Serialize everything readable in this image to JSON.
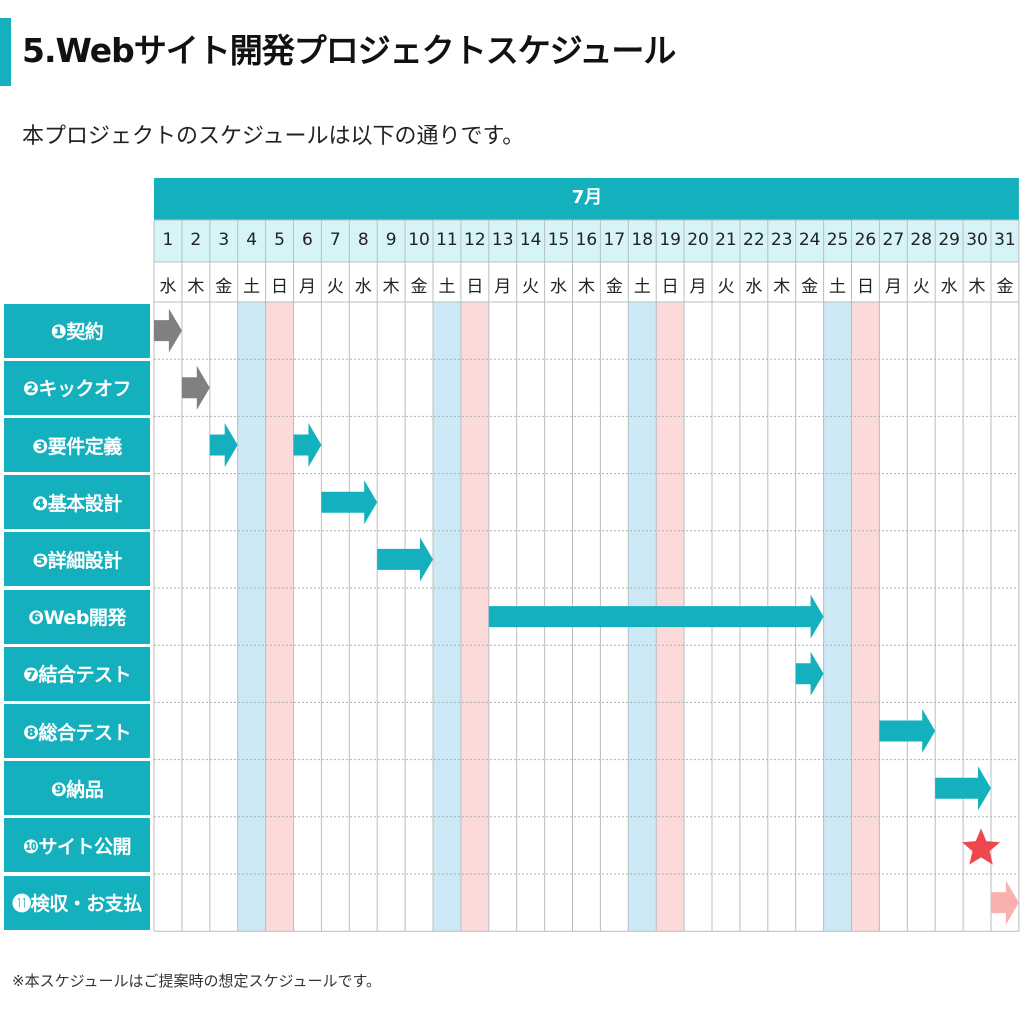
{
  "page": {
    "title": "5.Webサイト開発プロジェクトスケジュール",
    "subtitle": "本プロジェクトのスケジュールは以下の通りです。",
    "footnote": "※本スケジュールはご提案時の想定スケジュールです。"
  },
  "colors": {
    "accent": "#14b0bd",
    "header_light": "#d6f4f7",
    "saturday": "#cde9f6",
    "sunday": "#fcdada",
    "arrow_gray": "#808080",
    "arrow_pink": "#fbb0b0",
    "star": "#f0474f"
  },
  "chart_data": {
    "type": "gantt",
    "month": "7月",
    "days": [
      1,
      2,
      3,
      4,
      5,
      6,
      7,
      8,
      9,
      10,
      11,
      12,
      13,
      14,
      15,
      16,
      17,
      18,
      19,
      20,
      21,
      22,
      23,
      24,
      25,
      26,
      27,
      28,
      29,
      30,
      31
    ],
    "weekdays": [
      "水",
      "木",
      "金",
      "土",
      "日",
      "月",
      "火",
      "水",
      "木",
      "金",
      "土",
      "日",
      "月",
      "火",
      "水",
      "木",
      "金",
      "土",
      "日",
      "月",
      "火",
      "水",
      "木",
      "金",
      "土",
      "日",
      "月",
      "火",
      "水",
      "木",
      "金"
    ],
    "tasks": [
      {
        "label": "❶契約",
        "start": 1,
        "end": 1,
        "style": "gray"
      },
      {
        "label": "❷キックオフ",
        "start": 2,
        "end": 2,
        "style": "gray"
      },
      {
        "label": "❸要件定義",
        "segments": [
          [
            3,
            3
          ],
          [
            6,
            6
          ]
        ],
        "style": "teal"
      },
      {
        "label": "❹基本設計",
        "start": 7,
        "end": 8,
        "style": "teal"
      },
      {
        "label": "❺詳細設計",
        "start": 9,
        "end": 10,
        "style": "teal"
      },
      {
        "label": "❻Web開発",
        "start": 13,
        "end": 24,
        "style": "teal"
      },
      {
        "label": "❼結合テスト",
        "start": 24,
        "end": 24,
        "style": "teal"
      },
      {
        "label": "❽総合テスト",
        "start": 27,
        "end": 28,
        "style": "teal"
      },
      {
        "label": "❾納品",
        "start": 29,
        "end": 30,
        "style": "teal"
      },
      {
        "label": "❿サイト公開",
        "milestone": 30,
        "style": "star"
      },
      {
        "label": "⓫検収・お支払",
        "start": 31,
        "end": 31,
        "style": "pink",
        "continues": true
      }
    ]
  }
}
